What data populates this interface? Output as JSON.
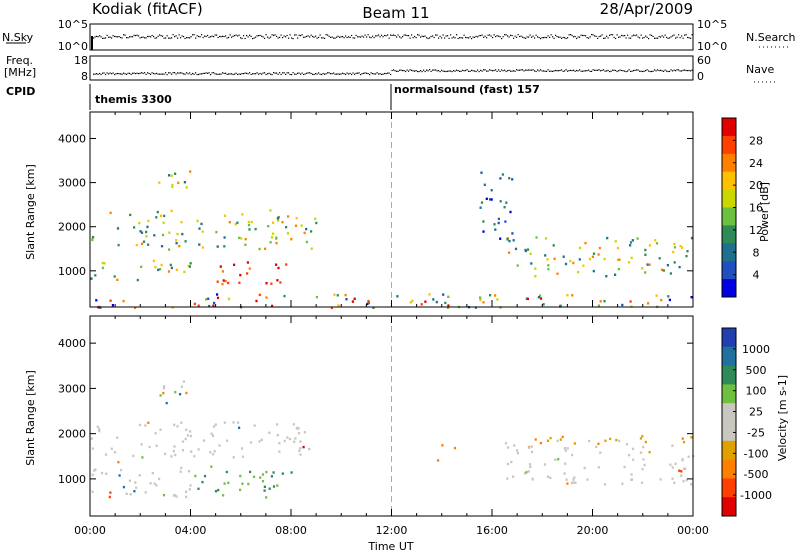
{
  "header": {
    "station": "Kodiak (fitACF)",
    "beam": "Beam 11",
    "date": "28/Apr/2009"
  },
  "strip": {
    "nsky_label": "N.Sky",
    "nsky_ticks": [
      "10^5",
      "10^0"
    ],
    "nsearch_label": "N.Search",
    "nsearch_ticks": [
      "10^5",
      "10^0"
    ],
    "freq_label_1": "Freq.",
    "freq_label_2": "[MHz]",
    "freq_ticks": [
      "18",
      "8"
    ],
    "nave_label": "Nave",
    "nave_ticks": [
      "60",
      "0"
    ],
    "cpid_label": "CPID",
    "cpid_1": "themis 3300",
    "cpid_2": "normalsound (fast) 157"
  },
  "panels": {
    "ylabel": "Slant Range [km]",
    "yticks": [
      "4000",
      "3000",
      "2000",
      "1000"
    ],
    "xticks": [
      "00:00",
      "04:00",
      "08:00",
      "12:00",
      "16:00",
      "20:00",
      "00:00"
    ],
    "xlabel": "Time UT"
  },
  "colorbars": {
    "power": {
      "label": "Power [dB]",
      "ticks": [
        "28",
        "24",
        "20",
        "16",
        "12",
        "8",
        "4"
      ],
      "colors": [
        "#e00000",
        "#ff4000",
        "#ff8000",
        "#ffc000",
        "#c8d800",
        "#6cc040",
        "#2e8b57",
        "#1f6f8f",
        "#2050c0",
        "#0000e0"
      ]
    },
    "velocity": {
      "label": "Velocity [m s-1]",
      "ticks": [
        "1000",
        "500",
        "100",
        "25",
        "-25",
        "-100",
        "-500",
        "-1000"
      ],
      "colors": [
        "#2040b0",
        "#2070a0",
        "#2e8b57",
        "#70c040",
        "#c8c8c0",
        "#c8c8c0",
        "#e0a000",
        "#ff8000",
        "#ff4000",
        "#e00000"
      ]
    }
  },
  "chart_data": [
    {
      "type": "heatmap",
      "title": "Power",
      "xlabel": "Time UT",
      "ylabel": "Slant Range [km]",
      "xlim": [
        "00:00",
        "24:00"
      ],
      "ylim": [
        180,
        4600
      ],
      "colorbar": {
        "label": "Power [dB]",
        "range": [
          0,
          32
        ]
      },
      "regions": [
        {
          "t": [
            0.0,
            9.0
          ],
          "r": [
            1500,
            2400
          ],
          "level": "green/orange/yellow",
          "value_db": [
            8,
            24
          ]
        },
        {
          "t": [
            0.0,
            4.0
          ],
          "r": [
            800,
            1300
          ],
          "level": "orange/yellow",
          "value_db": [
            12,
            24
          ]
        },
        {
          "t": [
            5.0,
            8.0
          ],
          "r": [
            700,
            1300
          ],
          "level": "red",
          "value_db": [
            24,
            32
          ]
        },
        {
          "t": [
            2.5,
            4.0
          ],
          "r": [
            2700,
            3300
          ],
          "level": "green",
          "value_db": [
            8,
            20
          ]
        },
        {
          "t": [
            16.5,
            24.0
          ],
          "r": [
            900,
            1800
          ],
          "level": "green/yellow/orange",
          "value_db": [
            8,
            22
          ]
        },
        {
          "t": [
            15.5,
            17.0
          ],
          "r": [
            1700,
            3300
          ],
          "level": "blue/green",
          "value_db": [
            4,
            16
          ]
        },
        {
          "t": [
            0.0,
            24.0
          ],
          "r": [
            180,
            500
          ],
          "level": "mixed",
          "value_db": [
            4,
            20
          ]
        }
      ]
    },
    {
      "type": "heatmap",
      "title": "Velocity",
      "xlabel": "Time UT",
      "ylabel": "Slant Range [km]",
      "xlim": [
        "00:00",
        "24:00"
      ],
      "ylim": [
        180,
        4600
      ],
      "colorbar": {
        "label": "Velocity [m s-1]",
        "range": [
          -1000,
          1000
        ]
      },
      "regions": [
        {
          "t": [
            0.0,
            9.0
          ],
          "r": [
            1500,
            2300
          ],
          "level": "grey",
          "value_ms": [
            -25,
            25
          ]
        },
        {
          "t": [
            0.0,
            4.0
          ],
          "r": [
            600,
            1400
          ],
          "level": "grey",
          "value_ms": [
            -25,
            25
          ]
        },
        {
          "t": [
            4.0,
            8.0
          ],
          "r": [
            600,
            1300
          ],
          "level": "green",
          "value_ms": [
            25,
            100
          ]
        },
        {
          "t": [
            2.5,
            4.0
          ],
          "r": [
            2700,
            3300
          ],
          "level": "green/orange",
          "value_ms": [
            -100,
            500
          ]
        },
        {
          "t": [
            16.5,
            24.0
          ],
          "r": [
            900,
            1900
          ],
          "level": "grey",
          "value_ms": [
            -25,
            25
          ]
        },
        {
          "t": [
            16.5,
            24.0
          ],
          "r": [
            1800,
            2000
          ],
          "level": "orange",
          "value_ms": [
            -500,
            -100
          ]
        },
        {
          "t": [
            13.8,
            14.5
          ],
          "r": [
            1400,
            1800
          ],
          "level": "orange",
          "value_ms": [
            -500,
            -100
          ]
        }
      ]
    }
  ]
}
